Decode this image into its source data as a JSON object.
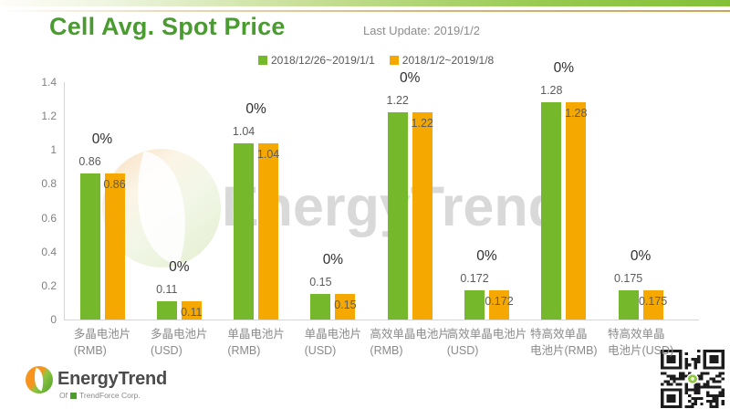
{
  "header": {
    "title": "Cell Avg. Spot Price",
    "last_update": "Last Update: 2019/1/2"
  },
  "chart_data": {
    "type": "bar",
    "title": "Cell Avg. Spot Price",
    "categories": [
      "多晶电池片\n(RMB)",
      "多晶电池片\n(USD)",
      "单晶电池片\n(RMB)",
      "单晶电池片\n(USD)",
      "高效单晶电池片\n(RMB)",
      "高效单晶电池片\n(USD)",
      "特高效单晶\n电池片(RMB)",
      "特高效单晶\n电池片(USD)"
    ],
    "series": [
      {
        "name": "2018/12/26~2019/1/1",
        "color": "#76b82c",
        "values": [
          0.86,
          0.11,
          1.04,
          0.15,
          1.22,
          0.172,
          1.28,
          0.175
        ],
        "value_labels": [
          "0.86",
          "0.11",
          "1.04",
          "0.15",
          "1.22",
          "0.172",
          "1.28",
          "0.175"
        ]
      },
      {
        "name": "2018/1/2~2019/1/8",
        "color": "#f5a800",
        "values": [
          0.86,
          0.11,
          1.04,
          0.15,
          1.22,
          0.172,
          1.28,
          0.175
        ],
        "value_labels": [
          "0.86",
          "0.11",
          "1.04",
          "0.15",
          "1.22",
          "0.172",
          "1.28",
          "0.175"
        ]
      }
    ],
    "change_labels": [
      "0%",
      "0%",
      "0%",
      "0%",
      "0%",
      "0%",
      "0%",
      "0%"
    ],
    "ylim": [
      0,
      1.4
    ],
    "ytick_labels": [
      "1.4",
      "1.2",
      "1",
      "0.8",
      "0.6",
      "0.4",
      "0.2",
      "0"
    ],
    "grid": false,
    "legend_position": "top"
  },
  "watermark": {
    "text": "EnergyTrend"
  },
  "footer": {
    "brand": "EnergyTrend",
    "sub_prefix": "Of",
    "sub_company": "TrendForce Corp."
  }
}
